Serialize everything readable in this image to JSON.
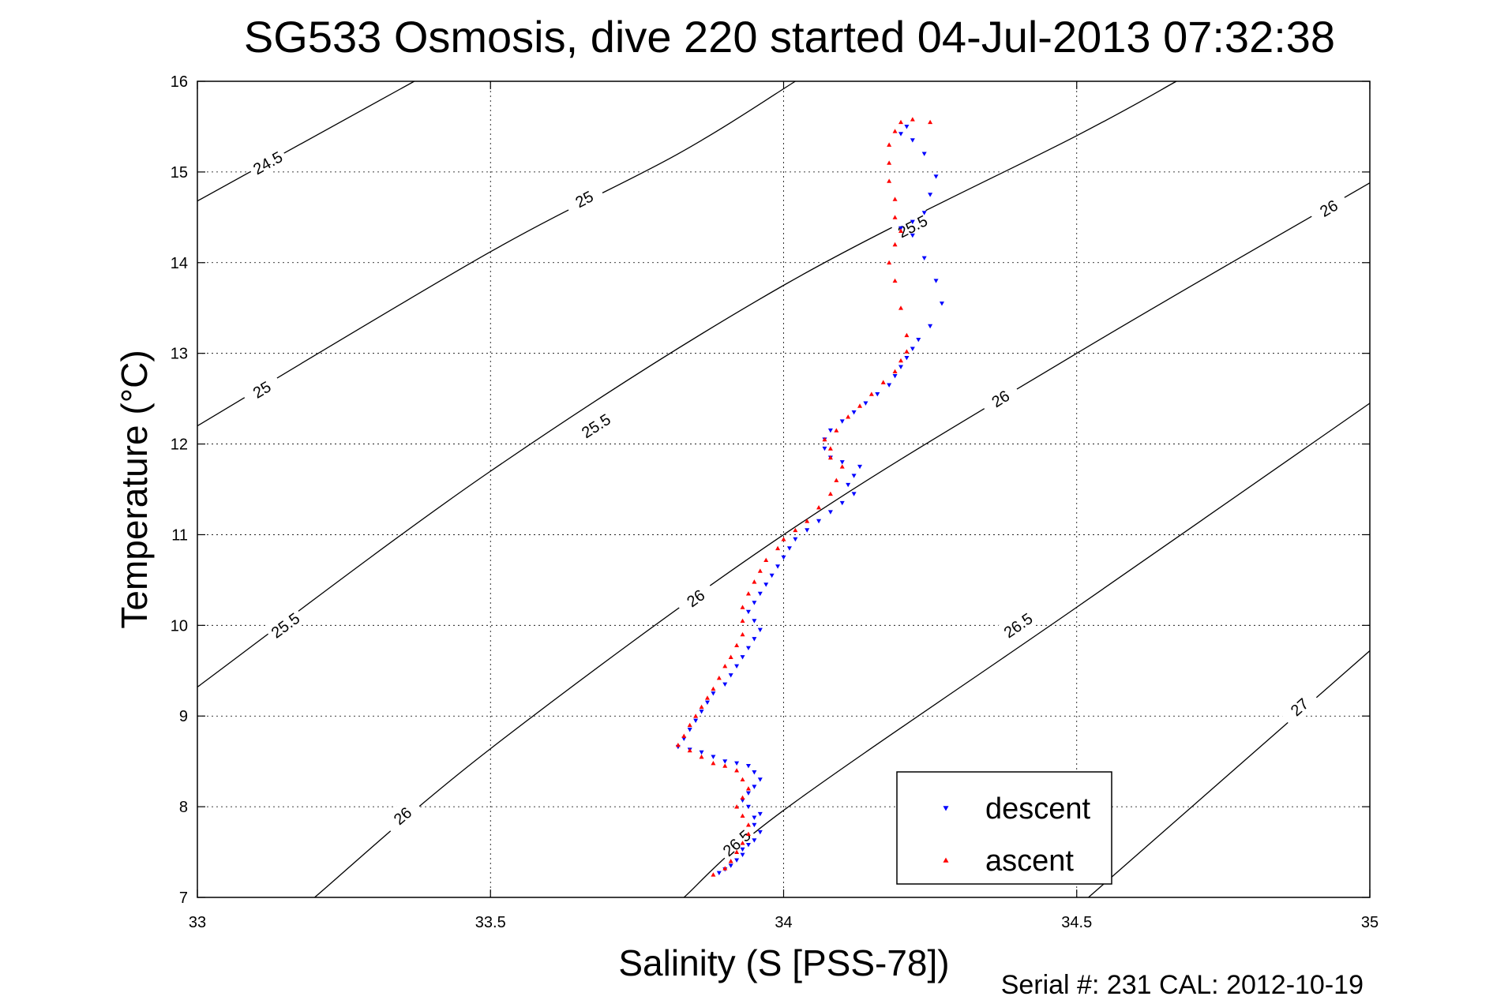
{
  "chart_data": {
    "type": "scatter",
    "title": "SG533 Osmosis, dive 220 started 04-Jul-2013 07:32:38",
    "xlabel": "Salinity (S [PSS-78])",
    "ylabel": "Temperature (°C)",
    "footer": "Serial #: 231  CAL: 2012-10-19",
    "xlim": [
      33,
      35
    ],
    "ylim": [
      7,
      16
    ],
    "x_ticks": [
      33,
      33.5,
      34,
      34.5,
      35
    ],
    "x_tick_labels": [
      "33",
      "33.5",
      "34",
      "34.5",
      "35"
    ],
    "y_ticks": [
      7,
      8,
      9,
      10,
      11,
      12,
      13,
      14,
      15,
      16
    ],
    "y_tick_labels": [
      "7",
      "8",
      "9",
      "10",
      "11",
      "12",
      "13",
      "14",
      "15",
      "16"
    ],
    "grid": true,
    "legend_placement": "bottom-right",
    "colors": {
      "descent": "#0000ff",
      "ascent": "#ff0000",
      "contour": "#000000"
    },
    "contours": [
      {
        "label": "24.5",
        "points": [
          [
            33.0,
            14.68
          ],
          [
            33.37,
            16.0
          ]
        ],
        "label_at": [
          [
            33.12,
            15.1
          ]
        ]
      },
      {
        "label": "25",
        "points": [
          [
            33.0,
            12.2
          ],
          [
            33.5,
            14.12
          ],
          [
            33.82,
            15.2
          ],
          [
            34.02,
            16.0
          ]
        ],
        "label_at": [
          [
            33.11,
            12.6
          ],
          [
            33.66,
            14.7
          ]
        ]
      },
      {
        "label": "25.5",
        "points": [
          [
            33.0,
            9.32
          ],
          [
            33.5,
            11.7
          ],
          [
            34.0,
            13.75
          ],
          [
            34.5,
            15.4
          ],
          [
            34.67,
            16.0
          ]
        ],
        "label_at": [
          [
            33.15,
            10.0
          ],
          [
            33.68,
            12.2
          ],
          [
            34.22,
            14.4
          ]
        ]
      },
      {
        "label": "26",
        "points": [
          [
            33.2,
            7.0
          ],
          [
            33.5,
            8.64
          ],
          [
            34.0,
            11.0
          ],
          [
            34.5,
            13.0
          ],
          [
            35.0,
            14.88
          ]
        ],
        "label_at": [
          [
            33.35,
            7.9
          ],
          [
            33.85,
            10.3
          ],
          [
            34.37,
            12.5
          ],
          [
            34.93,
            14.6
          ]
        ]
      },
      {
        "label": "26.5",
        "points": [
          [
            33.83,
            7.0
          ],
          [
            34.0,
            7.96
          ],
          [
            34.5,
            10.2
          ],
          [
            35.0,
            12.45
          ]
        ],
        "label_at": [
          [
            33.92,
            7.6
          ],
          [
            34.4,
            10.0
          ]
        ]
      },
      {
        "label": "27",
        "points": [
          [
            34.52,
            7.0
          ],
          [
            35.0,
            9.72
          ]
        ],
        "label_at": [
          [
            34.88,
            9.1
          ]
        ]
      }
    ],
    "series": [
      {
        "name": "descent",
        "marker": "triangle-down",
        "points": [
          [
            33.89,
            7.27
          ],
          [
            33.9,
            7.31
          ],
          [
            33.91,
            7.35
          ],
          [
            33.92,
            7.41
          ],
          [
            33.93,
            7.47
          ],
          [
            33.93,
            7.53
          ],
          [
            33.94,
            7.58
          ],
          [
            33.95,
            7.63
          ],
          [
            33.96,
            7.72
          ],
          [
            33.95,
            7.8
          ],
          [
            33.95,
            7.88
          ],
          [
            33.96,
            7.92
          ],
          [
            33.94,
            8.0
          ],
          [
            33.93,
            8.07
          ],
          [
            33.94,
            8.15
          ],
          [
            33.95,
            8.22
          ],
          [
            33.96,
            8.3
          ],
          [
            33.95,
            8.38
          ],
          [
            33.94,
            8.45
          ],
          [
            33.92,
            8.48
          ],
          [
            33.9,
            8.5
          ],
          [
            33.88,
            8.55
          ],
          [
            33.86,
            8.6
          ],
          [
            33.84,
            8.63
          ],
          [
            33.82,
            8.66
          ],
          [
            33.83,
            8.75
          ],
          [
            33.84,
            8.85
          ],
          [
            33.85,
            8.95
          ],
          [
            33.86,
            9.05
          ],
          [
            33.87,
            9.15
          ],
          [
            33.88,
            9.25
          ],
          [
            33.9,
            9.35
          ],
          [
            33.91,
            9.45
          ],
          [
            33.92,
            9.55
          ],
          [
            33.93,
            9.65
          ],
          [
            33.94,
            9.75
          ],
          [
            33.95,
            9.85
          ],
          [
            33.96,
            9.95
          ],
          [
            33.95,
            10.05
          ],
          [
            33.94,
            10.15
          ],
          [
            33.95,
            10.25
          ],
          [
            33.96,
            10.35
          ],
          [
            33.97,
            10.45
          ],
          [
            33.98,
            10.55
          ],
          [
            33.99,
            10.65
          ],
          [
            34.0,
            10.75
          ],
          [
            34.01,
            10.85
          ],
          [
            34.02,
            10.95
          ],
          [
            34.04,
            11.05
          ],
          [
            34.06,
            11.15
          ],
          [
            34.08,
            11.25
          ],
          [
            34.1,
            11.35
          ],
          [
            34.12,
            11.45
          ],
          [
            34.11,
            11.55
          ],
          [
            34.12,
            11.65
          ],
          [
            34.13,
            11.75
          ],
          [
            34.1,
            11.8
          ],
          [
            34.08,
            11.85
          ],
          [
            34.07,
            11.95
          ],
          [
            34.07,
            12.05
          ],
          [
            34.08,
            12.15
          ],
          [
            34.1,
            12.25
          ],
          [
            34.12,
            12.35
          ],
          [
            34.14,
            12.45
          ],
          [
            34.16,
            12.55
          ],
          [
            34.18,
            12.65
          ],
          [
            34.19,
            12.75
          ],
          [
            34.2,
            12.85
          ],
          [
            34.21,
            12.95
          ],
          [
            34.22,
            13.05
          ],
          [
            34.23,
            13.15
          ],
          [
            34.25,
            13.3
          ],
          [
            34.27,
            13.55
          ],
          [
            34.26,
            13.8
          ],
          [
            34.24,
            14.05
          ],
          [
            34.22,
            14.3
          ],
          [
            34.2,
            14.38
          ],
          [
            34.22,
            14.45
          ],
          [
            34.24,
            14.55
          ],
          [
            34.25,
            14.75
          ],
          [
            34.26,
            14.95
          ],
          [
            34.24,
            15.2
          ],
          [
            34.22,
            15.35
          ],
          [
            34.2,
            15.42
          ],
          [
            34.21,
            15.5
          ]
        ]
      },
      {
        "name": "ascent",
        "marker": "triangle-up",
        "points": [
          [
            33.88,
            7.25
          ],
          [
            33.9,
            7.32
          ],
          [
            33.91,
            7.4
          ],
          [
            33.92,
            7.5
          ],
          [
            33.93,
            7.6
          ],
          [
            33.94,
            7.7
          ],
          [
            33.94,
            7.8
          ],
          [
            33.93,
            7.9
          ],
          [
            33.92,
            8.0
          ],
          [
            33.93,
            8.1
          ],
          [
            33.94,
            8.2
          ],
          [
            33.93,
            8.3
          ],
          [
            33.92,
            8.4
          ],
          [
            33.9,
            8.45
          ],
          [
            33.88,
            8.48
          ],
          [
            33.86,
            8.55
          ],
          [
            33.84,
            8.62
          ],
          [
            33.82,
            8.68
          ],
          [
            33.83,
            8.78
          ],
          [
            33.84,
            8.9
          ],
          [
            33.85,
            9.0
          ],
          [
            33.86,
            9.1
          ],
          [
            33.87,
            9.2
          ],
          [
            33.88,
            9.3
          ],
          [
            33.89,
            9.42
          ],
          [
            33.9,
            9.55
          ],
          [
            33.91,
            9.65
          ],
          [
            33.92,
            9.78
          ],
          [
            33.93,
            9.9
          ],
          [
            33.93,
            10.05
          ],
          [
            33.93,
            10.2
          ],
          [
            33.94,
            10.35
          ],
          [
            33.95,
            10.48
          ],
          [
            33.96,
            10.6
          ],
          [
            33.97,
            10.72
          ],
          [
            33.99,
            10.85
          ],
          [
            34.0,
            10.95
          ],
          [
            34.02,
            11.05
          ],
          [
            34.04,
            11.15
          ],
          [
            34.06,
            11.3
          ],
          [
            34.08,
            11.45
          ],
          [
            34.09,
            11.6
          ],
          [
            34.1,
            11.75
          ],
          [
            34.08,
            11.85
          ],
          [
            34.08,
            11.95
          ],
          [
            34.07,
            12.05
          ],
          [
            34.09,
            12.15
          ],
          [
            34.11,
            12.3
          ],
          [
            34.13,
            12.42
          ],
          [
            34.15,
            12.55
          ],
          [
            34.17,
            12.68
          ],
          [
            34.19,
            12.8
          ],
          [
            34.2,
            12.92
          ],
          [
            34.21,
            13.02
          ],
          [
            34.21,
            13.2
          ],
          [
            34.2,
            13.5
          ],
          [
            34.19,
            13.8
          ],
          [
            34.18,
            14.0
          ],
          [
            34.19,
            14.2
          ],
          [
            34.2,
            14.35
          ],
          [
            34.19,
            14.5
          ],
          [
            34.19,
            14.7
          ],
          [
            34.18,
            14.9
          ],
          [
            34.18,
            15.1
          ],
          [
            34.18,
            15.3
          ],
          [
            34.19,
            15.45
          ],
          [
            34.2,
            15.55
          ],
          [
            34.22,
            15.58
          ],
          [
            34.25,
            15.55
          ]
        ]
      }
    ]
  }
}
